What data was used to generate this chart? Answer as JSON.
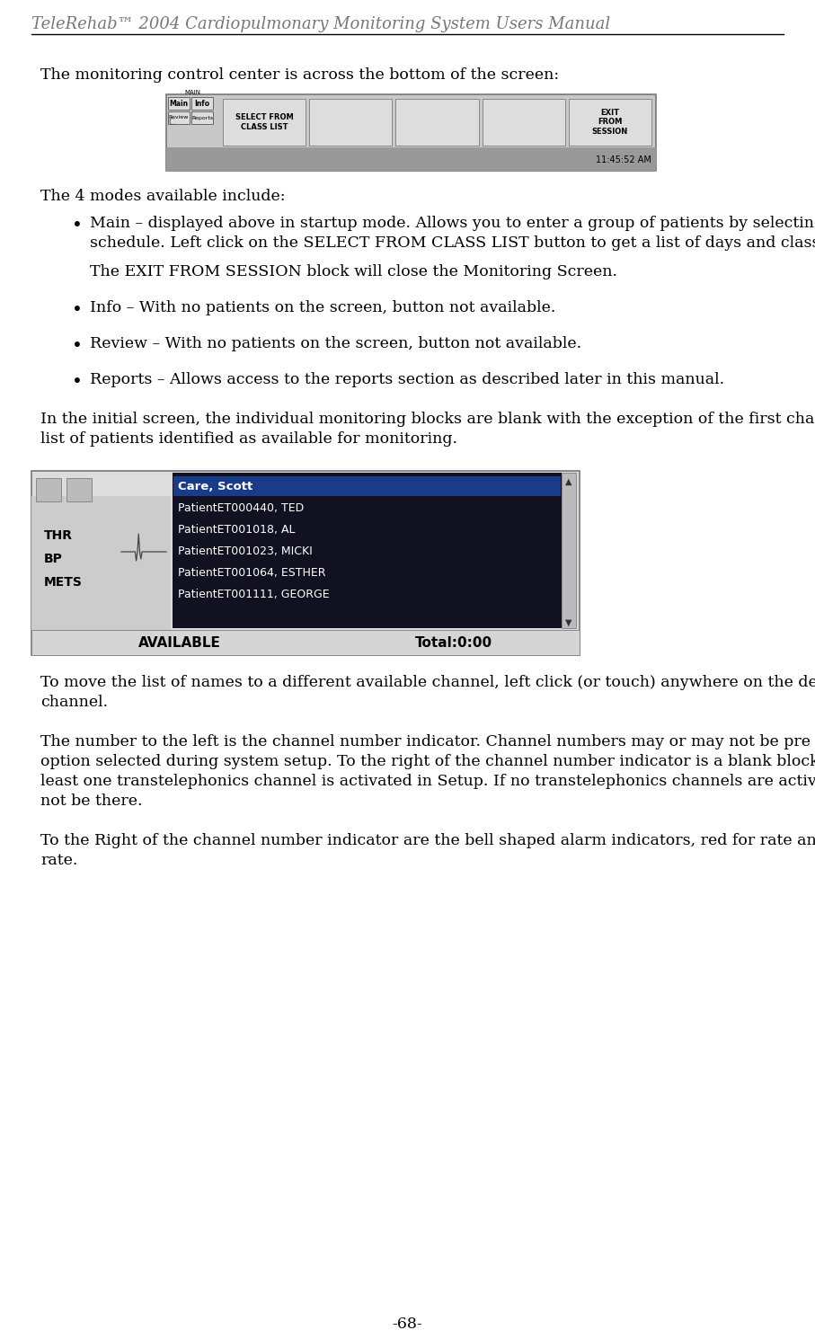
{
  "title_italic": "TeleRehab™ 2004 Cardiopulmonary Monitoring System Users Manual",
  "page_number": "-68-",
  "bg_color": "#ffffff",
  "body_font_size": 12.5,
  "title_font_size": 13,
  "lm": 45,
  "rm": 862,
  "line1": "The monitoring control center is across the bottom of the screen:",
  "modes_header": "The 4 modes available include:",
  "bullet_main": [
    "Main – displayed above in startup mode.  Allows you to enter a group of patients by selecting from class list schedule.  Left click on the SELECT FROM CLASS LIST button to get a list of days and class times for the week.",
    "Info – With no patients on the screen, button not available.",
    "Review – With no patients on the screen, button not available.",
    "Reports –  Allows access to the reports section as described later in this manual."
  ],
  "bullet_sub": "The EXIT FROM SESSION block will close the Monitoring Screen.",
  "para2": "In the initial screen, the individual monitoring blocks are blank with the exception of the first channel that has the list of patients identified as available for monitoring.",
  "para3": "To move the list of names to a different available channel, left click (or touch) anywhere on the desired available channel.",
  "para4": "The number to the left is the channel number indicator. Channel numbers may or may not be pre assigned based on the option selected during system setup.  To the right of the channel number indicator is a blank block indicating that at least one transtelephonics channel is activated in Setup. If no transtelephonics channels are activated, the block will not be there.",
  "para5": "To the Right of the channel number indicator are the bell shaped alarm indicators, red for rate and blue for arrhythmia rate.",
  "screen1_time": "11:45:52 AM",
  "screen2_patients": [
    "Care, Scott",
    "PatientET000440, TED",
    "PatientET001018, AL",
    "PatientET001023, MICKI",
    "PatientET001064, ESTHER",
    "PatientET001111, GEORGE"
  ],
  "screen2_labels": [
    "THR",
    "BP",
    "METS"
  ],
  "screen2_bottom_left": "AVAILABLE",
  "screen2_bottom_right": "Total:0:00"
}
